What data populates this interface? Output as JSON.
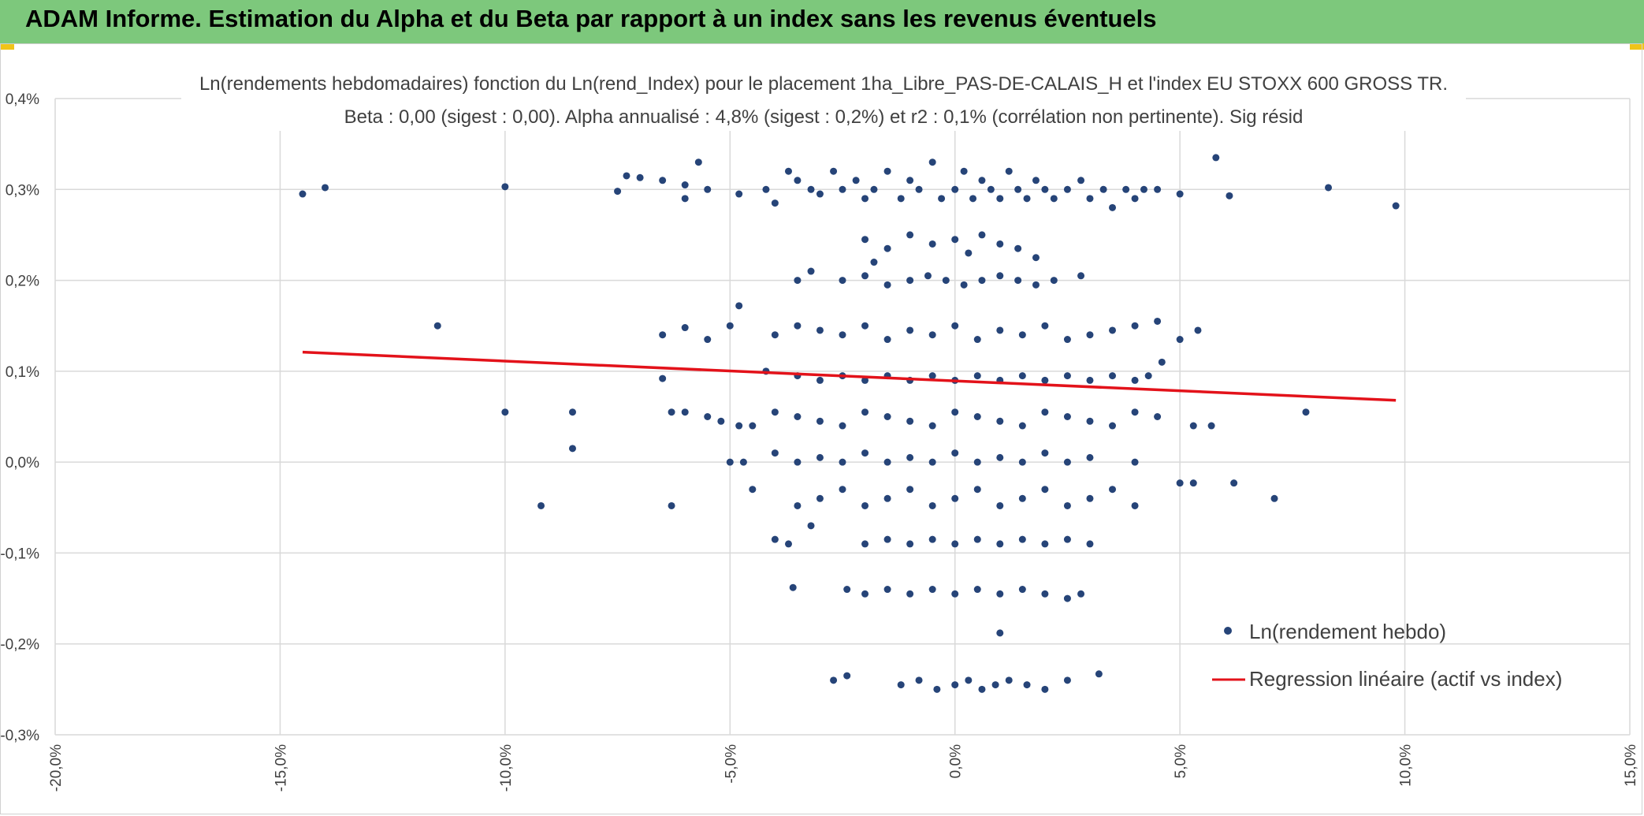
{
  "header": {
    "title": "ADAM Informe. Estimation du Alpha et du Beta par rapport à un index sans les revenus éventuels"
  },
  "colors": {
    "banner": "#7dc87c",
    "points": "#264478",
    "regression": "#e3121a",
    "grid": "#d9d9d9"
  },
  "chart_data": {
    "type": "scatter",
    "title": "Ln(rendements hebdomadaires) fonction du Ln(rend_Index) pour le placement 1ha_Libre_PAS-DE-CALAIS_H et l'index EU STOXX 600 GROSS TR.",
    "subtitle": "Beta : 0,00 (sigest : 0,00). Alpha annualisé : 4,8% (sigest : 0,2%) et r2 : 0,1% (corrélation non pertinente). Sig résid",
    "xlabel": "",
    "ylabel": "",
    "xlim": [
      -20,
      15
    ],
    "ylim": [
      -0.3,
      0.4
    ],
    "x_ticks": [
      "-20,0%",
      "-15,0%",
      "-10,0%",
      "-5,0%",
      "0,0%",
      "5,0%",
      "10,0%",
      "15,0%"
    ],
    "y_ticks": [
      "-0,3%",
      "-0,2%",
      "-0,1%",
      "0,0%",
      "0,1%",
      "0,2%",
      "0,3%",
      "0,4%"
    ],
    "grid": true,
    "legend_position": "bottom-right",
    "series": [
      {
        "name": "Ln(rendement hebdo)",
        "type": "scatter",
        "x": [
          -14.5,
          -14.0,
          -10.0,
          -7.5,
          -7.3,
          -7.0,
          -6.5,
          -6.0,
          -6.0,
          -5.7,
          -5.5,
          -4.8,
          -4.2,
          -4.0,
          -3.7,
          -3.5,
          -3.2,
          -3.0,
          -2.7,
          -2.5,
          -2.2,
          -2.0,
          -1.8,
          -1.5,
          -1.2,
          -1.0,
          -0.8,
          -0.5,
          -0.3,
          0.0,
          0.2,
          0.4,
          0.6,
          0.8,
          1.0,
          1.2,
          1.4,
          1.6,
          1.8,
          2.0,
          2.2,
          2.5,
          2.8,
          3.0,
          3.3,
          3.5,
          3.8,
          4.0,
          4.2,
          4.5,
          5.0,
          5.8,
          6.1,
          8.3,
          9.8,
          -2.0,
          -1.5,
          -1.0,
          -0.5,
          0.0,
          0.3,
          0.6,
          1.0,
          1.4,
          -3.2,
          -1.8,
          1.8,
          -3.5,
          -2.5,
          -2.0,
          -1.5,
          -1.0,
          -0.6,
          -0.2,
          0.2,
          0.6,
          1.0,
          1.4,
          1.8,
          2.2,
          2.8,
          -11.5,
          -6.5,
          -6.0,
          -5.0,
          -5.5,
          -4.8,
          -4.0,
          -3.5,
          -3.0,
          -2.5,
          -2.0,
          -1.5,
          -1.0,
          -0.5,
          0.0,
          0.5,
          1.0,
          1.5,
          2.0,
          2.5,
          3.0,
          3.5,
          4.0,
          4.5,
          5.0,
          5.4,
          4.6,
          -6.5,
          -4.2,
          -3.5,
          -3.0,
          -2.5,
          -2.0,
          -1.5,
          -1.0,
          -0.5,
          0.0,
          0.5,
          1.0,
          1.5,
          2.0,
          2.5,
          3.0,
          3.5,
          4.0,
          4.3,
          -10.0,
          -8.5,
          -6.3,
          -6.0,
          -5.5,
          -5.2,
          -4.8,
          -4.5,
          -4.0,
          -3.5,
          -3.0,
          -2.5,
          -2.0,
          -1.5,
          -1.0,
          -0.5,
          0.0,
          0.5,
          1.0,
          1.5,
          2.0,
          2.5,
          3.0,
          3.5,
          4.0,
          4.5,
          5.3,
          5.7,
          7.8,
          -8.5,
          -5.0,
          -4.7,
          -4.0,
          -3.5,
          -3.0,
          -2.5,
          -2.0,
          -1.5,
          -1.0,
          -0.5,
          0.0,
          0.5,
          1.0,
          1.5,
          2.0,
          2.5,
          3.0,
          4.0,
          -9.2,
          -6.3,
          -4.5,
          -3.5,
          -3.0,
          -2.5,
          -2.0,
          -1.5,
          -1.0,
          -0.5,
          0.0,
          0.5,
          1.0,
          1.5,
          2.0,
          2.5,
          3.0,
          3.5,
          4.0,
          5.0,
          5.3,
          6.2,
          7.1,
          -4.0,
          -3.7,
          -3.2,
          -2.0,
          -1.5,
          -1.0,
          -0.5,
          0.0,
          0.5,
          1.0,
          1.5,
          2.0,
          2.5,
          3.0,
          -3.6,
          -2.4,
          -2.0,
          -1.5,
          -1.0,
          -0.5,
          0.0,
          0.5,
          1.0,
          1.5,
          2.0,
          2.5,
          2.8,
          1.0,
          -2.7,
          -2.4,
          -1.2,
          -0.8,
          -0.4,
          0.0,
          0.3,
          0.6,
          0.9,
          1.2,
          1.6,
          2.0,
          2.5,
          3.2
        ],
        "y": [
          0.295,
          0.302,
          0.303,
          0.298,
          0.315,
          0.313,
          0.31,
          0.305,
          0.29,
          0.33,
          0.3,
          0.295,
          0.3,
          0.285,
          0.32,
          0.31,
          0.3,
          0.295,
          0.32,
          0.3,
          0.31,
          0.29,
          0.3,
          0.32,
          0.29,
          0.31,
          0.3,
          0.33,
          0.29,
          0.3,
          0.32,
          0.29,
          0.31,
          0.3,
          0.29,
          0.32,
          0.3,
          0.29,
          0.31,
          0.3,
          0.29,
          0.3,
          0.31,
          0.29,
          0.3,
          0.28,
          0.3,
          0.29,
          0.3,
          0.3,
          0.295,
          0.335,
          0.293,
          0.302,
          0.282,
          0.245,
          0.235,
          0.25,
          0.24,
          0.245,
          0.23,
          0.25,
          0.24,
          0.235,
          0.21,
          0.22,
          0.225,
          0.2,
          0.2,
          0.205,
          0.195,
          0.2,
          0.205,
          0.2,
          0.195,
          0.2,
          0.205,
          0.2,
          0.195,
          0.2,
          0.205,
          0.15,
          0.14,
          0.148,
          0.15,
          0.135,
          0.172,
          0.14,
          0.15,
          0.145,
          0.14,
          0.15,
          0.135,
          0.145,
          0.14,
          0.15,
          0.135,
          0.145,
          0.14,
          0.15,
          0.135,
          0.14,
          0.145,
          0.15,
          0.155,
          0.135,
          0.145,
          0.11,
          0.092,
          0.1,
          0.095,
          0.09,
          0.095,
          0.09,
          0.095,
          0.09,
          0.095,
          0.09,
          0.095,
          0.09,
          0.095,
          0.09,
          0.095,
          0.09,
          0.095,
          0.09,
          0.095,
          0.055,
          0.055,
          0.055,
          0.055,
          0.05,
          0.045,
          0.04,
          0.04,
          0.055,
          0.05,
          0.045,
          0.04,
          0.055,
          0.05,
          0.045,
          0.04,
          0.055,
          0.05,
          0.045,
          0.04,
          0.055,
          0.05,
          0.045,
          0.04,
          0.055,
          0.05,
          0.04,
          0.04,
          0.055,
          0.015,
          0.0,
          0.0,
          0.01,
          0.0,
          0.005,
          0.0,
          0.01,
          0.0,
          0.005,
          0.0,
          0.01,
          0.0,
          0.005,
          0.0,
          0.01,
          0.0,
          0.005,
          0.0,
          -0.048,
          -0.048,
          -0.03,
          -0.048,
          -0.04,
          -0.03,
          -0.048,
          -0.04,
          -0.03,
          -0.048,
          -0.04,
          -0.03,
          -0.048,
          -0.04,
          -0.03,
          -0.048,
          -0.04,
          -0.03,
          -0.048,
          -0.023,
          -0.023,
          -0.023,
          -0.04,
          -0.085,
          -0.09,
          -0.07,
          -0.09,
          -0.085,
          -0.09,
          -0.085,
          -0.09,
          -0.085,
          -0.09,
          -0.085,
          -0.09,
          -0.085,
          -0.09,
          -0.138,
          -0.14,
          -0.145,
          -0.14,
          -0.145,
          -0.14,
          -0.145,
          -0.14,
          -0.145,
          -0.14,
          -0.145,
          -0.15,
          -0.145,
          -0.188,
          -0.24,
          -0.235,
          -0.245,
          -0.24,
          -0.25,
          -0.245,
          -0.24,
          -0.25,
          -0.245,
          -0.24,
          -0.245,
          -0.25,
          -0.24,
          -0.233
        ]
      },
      {
        "name": "Regression linéaire (actif vs index)",
        "type": "line",
        "x": [
          -14.5,
          9.8
        ],
        "y": [
          0.121,
          0.068
        ]
      }
    ]
  }
}
